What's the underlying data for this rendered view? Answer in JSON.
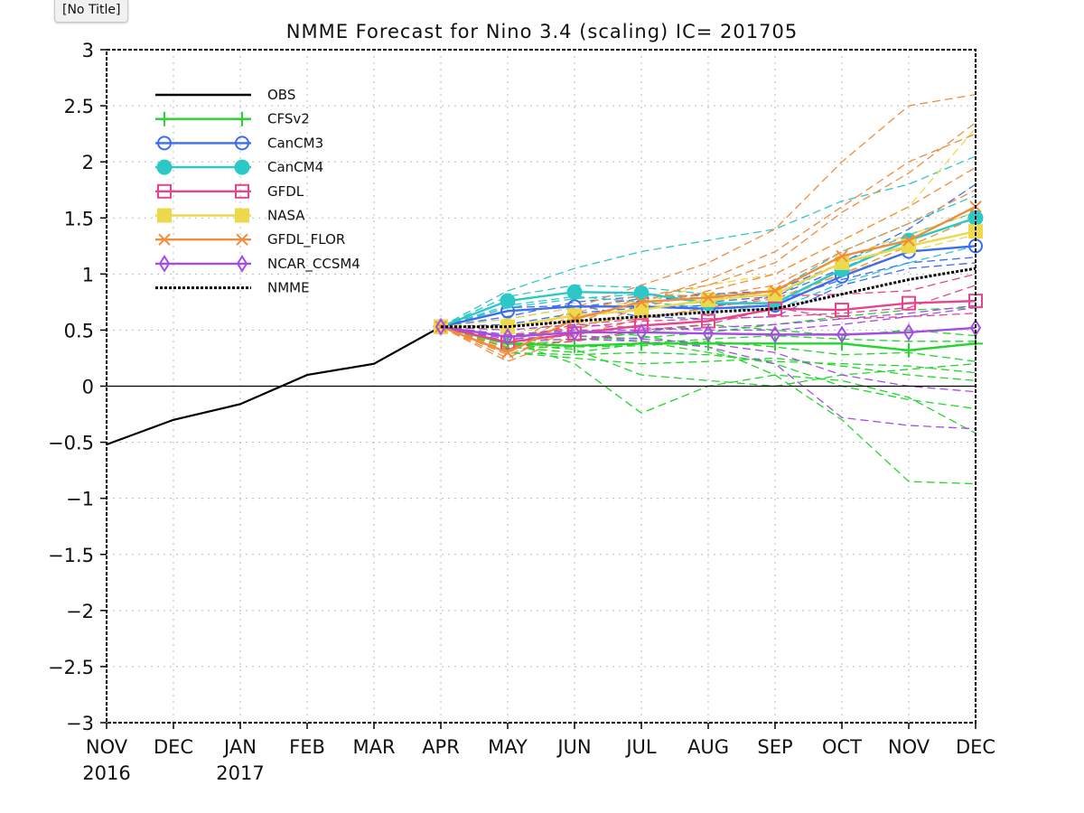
{
  "window": {
    "tab_title": "[No Title]"
  },
  "chart_data": {
    "type": "line",
    "title": "NMME Forecast for Nino 3.4 (scaling) IC= 201705",
    "xlabel": "",
    "ylabel": "",
    "x_ticks": [
      {
        "label": "NOV",
        "sub": "2016"
      },
      {
        "label": "DEC",
        "sub": ""
      },
      {
        "label": "JAN",
        "sub": "2017"
      },
      {
        "label": "FEB",
        "sub": ""
      },
      {
        "label": "MAR",
        "sub": ""
      },
      {
        "label": "APR",
        "sub": ""
      },
      {
        "label": "MAY",
        "sub": ""
      },
      {
        "label": "JUN",
        "sub": ""
      },
      {
        "label": "JUL",
        "sub": ""
      },
      {
        "label": "AUG",
        "sub": ""
      },
      {
        "label": "SEP",
        "sub": ""
      },
      {
        "label": "OCT",
        "sub": ""
      },
      {
        "label": "NOV",
        "sub": ""
      },
      {
        "label": "DEC",
        "sub": ""
      }
    ],
    "y_ticks": [
      "3",
      "2.5",
      "2",
      "1.5",
      "1",
      "0.5",
      "0",
      "−0.5",
      "−1",
      "−1.5",
      "−2",
      "−2.5",
      "−3"
    ],
    "ylim": [
      -3,
      3
    ],
    "grid": true,
    "legend_position": "top-left",
    "colors": {
      "OBS": "#000000",
      "CFSv2": "#22d62a",
      "CanCM3": "#3c6cf0",
      "CanCM4": "#2cc8c8",
      "GFDL": "#e8448c",
      "NASA": "#ecd94c",
      "GFDL_FLOR": "#f08c3c",
      "NCAR_CCSM4": "#a64ce6",
      "NMME": "#000000"
    },
    "series": [
      {
        "name": "OBS",
        "style": "solid",
        "marker": "none",
        "x": [
          0,
          1,
          2,
          3,
          4,
          5
        ],
        "values": [
          -0.52,
          -0.3,
          -0.16,
          0.1,
          0.2,
          0.53
        ]
      },
      {
        "name": "CFSv2",
        "style": "solid",
        "marker": "plus",
        "x": [
          5,
          6,
          7,
          8,
          9,
          10,
          11,
          12,
          13
        ],
        "values": [
          0.53,
          0.38,
          0.36,
          0.38,
          0.38,
          0.38,
          0.38,
          0.32,
          0.38
        ]
      },
      {
        "name": "CanCM3",
        "style": "solid",
        "marker": "circle",
        "x": [
          5,
          6,
          7,
          8,
          9,
          10,
          11,
          12,
          13
        ],
        "values": [
          0.53,
          0.67,
          0.71,
          0.71,
          0.69,
          0.72,
          0.98,
          1.2,
          1.25
        ]
      },
      {
        "name": "CanCM4",
        "style": "solid",
        "marker": "filled-circle",
        "x": [
          5,
          6,
          7,
          8,
          9,
          10,
          11,
          12,
          13
        ],
        "values": [
          0.53,
          0.76,
          0.84,
          0.83,
          0.74,
          0.74,
          1.04,
          1.3,
          1.5
        ]
      },
      {
        "name": "GFDL",
        "style": "solid",
        "marker": "square",
        "x": [
          5,
          6,
          7,
          8,
          9,
          10,
          11,
          12,
          13
        ],
        "values": [
          0.53,
          0.39,
          0.47,
          0.54,
          0.58,
          0.69,
          0.68,
          0.74,
          0.76
        ]
      },
      {
        "name": "NASA",
        "style": "solid",
        "marker": "filled-square",
        "x": [
          5,
          6,
          7,
          8,
          9,
          10,
          11,
          12,
          13
        ],
        "values": [
          0.53,
          0.53,
          0.63,
          0.68,
          0.77,
          0.82,
          1.1,
          1.25,
          1.38
        ]
      },
      {
        "name": "GFDL_FLOR",
        "style": "solid",
        "marker": "x",
        "x": [
          5,
          6,
          7,
          8,
          9,
          10,
          11,
          12,
          13
        ],
        "values": [
          0.53,
          0.3,
          0.6,
          0.75,
          0.79,
          0.85,
          1.16,
          1.3,
          1.6
        ]
      },
      {
        "name": "NCAR_CCSM4",
        "style": "solid",
        "marker": "diamond",
        "x": [
          5,
          6,
          7,
          8,
          9,
          10,
          11,
          12,
          13
        ],
        "values": [
          0.53,
          0.44,
          0.48,
          0.48,
          0.47,
          0.46,
          0.46,
          0.48,
          0.52
        ]
      },
      {
        "name": "NMME",
        "style": "dotted",
        "marker": "none",
        "x": [
          5,
          6,
          7,
          8,
          9,
          10,
          11,
          12,
          13
        ],
        "values": [
          0.53,
          0.53,
          0.58,
          0.62,
          0.66,
          0.69,
          0.82,
          0.95,
          1.05
        ]
      }
    ],
    "ensemble_members": [
      {
        "model": "CFSv2",
        "values": [
          0.53,
          0.35,
          0.3,
          0.38,
          0.42,
          0.45,
          0.42,
          0.4,
          0.4
        ]
      },
      {
        "model": "CFSv2",
        "values": [
          0.53,
          0.3,
          0.25,
          0.2,
          0.22,
          0.25,
          0.18,
          0.1,
          0.05
        ]
      },
      {
        "model": "CFSv2",
        "values": [
          0.53,
          0.45,
          0.5,
          0.45,
          0.35,
          0.1,
          -0.3,
          -0.85,
          -0.87
        ]
      },
      {
        "model": "CFSv2",
        "values": [
          0.53,
          0.4,
          0.2,
          -0.24,
          0.0,
          0.1,
          0.05,
          -0.1,
          -0.42
        ]
      },
      {
        "model": "CFSv2",
        "values": [
          0.53,
          0.42,
          0.45,
          0.4,
          0.3,
          0.2,
          0.0,
          -0.12,
          -0.2
        ]
      },
      {
        "model": "CFSv2",
        "values": [
          0.53,
          0.38,
          0.4,
          0.48,
          0.55,
          0.5,
          0.45,
          0.5,
          0.45
        ]
      },
      {
        "model": "CFSv2",
        "values": [
          0.53,
          0.3,
          0.28,
          0.3,
          0.28,
          0.22,
          0.2,
          0.18,
          0.12
        ]
      },
      {
        "model": "CFSv2",
        "values": [
          0.53,
          0.34,
          0.35,
          0.36,
          0.4,
          0.35,
          0.28,
          0.3,
          0.22
        ]
      },
      {
        "model": "CFSv2",
        "values": [
          0.53,
          0.37,
          0.33,
          0.1,
          0.05,
          0.0,
          0.1,
          0.15,
          0.2
        ]
      },
      {
        "model": "CFSv2",
        "values": [
          0.53,
          0.4,
          0.42,
          0.43,
          0.48,
          0.55,
          0.62,
          0.68,
          0.7
        ]
      },
      {
        "model": "CanCM3",
        "values": [
          0.53,
          0.6,
          0.7,
          0.78,
          0.82,
          0.85,
          1.1,
          1.4,
          1.8
        ]
      },
      {
        "model": "CanCM3",
        "values": [
          0.53,
          0.55,
          0.65,
          0.7,
          0.72,
          0.75,
          0.95,
          1.1,
          1.15
        ]
      },
      {
        "model": "CanCM3",
        "values": [
          0.53,
          0.7,
          0.72,
          0.62,
          0.6,
          0.62,
          0.9,
          1.05,
          1.1
        ]
      },
      {
        "model": "CanCM3",
        "values": [
          0.53,
          0.62,
          0.75,
          0.8,
          0.75,
          0.8,
          1.05,
          1.3,
          1.5
        ]
      },
      {
        "model": "CanCM4",
        "values": [
          0.53,
          0.85,
          1.05,
          1.2,
          1.3,
          1.4,
          1.65,
          1.8,
          2.05
        ]
      },
      {
        "model": "CanCM4",
        "values": [
          0.53,
          0.7,
          0.78,
          0.82,
          0.78,
          0.85,
          1.2,
          1.45,
          1.7
        ]
      },
      {
        "model": "CanCM4",
        "values": [
          0.53,
          0.72,
          0.8,
          0.75,
          0.7,
          0.68,
          0.92,
          1.1,
          1.25
        ]
      },
      {
        "model": "CanCM4",
        "values": [
          0.53,
          0.8,
          0.9,
          0.88,
          0.82,
          0.8,
          1.1,
          1.35,
          1.55
        ]
      },
      {
        "model": "GFDL",
        "values": [
          0.53,
          0.45,
          0.52,
          0.58,
          0.6,
          0.62,
          0.65,
          0.7,
          0.9
        ]
      },
      {
        "model": "GFDL",
        "values": [
          0.53,
          0.35,
          0.4,
          0.5,
          0.55,
          0.7,
          0.6,
          0.62,
          0.65
        ]
      },
      {
        "model": "GFDL",
        "values": [
          0.53,
          0.4,
          0.55,
          0.6,
          0.7,
          0.8,
          0.82,
          0.85,
          1.0
        ]
      },
      {
        "model": "NASA",
        "values": [
          0.53,
          0.6,
          0.7,
          0.75,
          0.9,
          1.0,
          1.3,
          1.6,
          2.3
        ]
      },
      {
        "model": "NASA",
        "values": [
          0.53,
          0.5,
          0.55,
          0.62,
          0.68,
          0.75,
          1.0,
          1.2,
          1.35
        ]
      },
      {
        "model": "NASA",
        "values": [
          0.53,
          0.45,
          0.6,
          0.7,
          0.75,
          0.85,
          1.15,
          1.35,
          1.55
        ]
      },
      {
        "model": "GFDL_FLOR",
        "values": [
          0.53,
          0.35,
          0.7,
          0.9,
          1.1,
          1.4,
          2.0,
          2.5,
          2.6
        ]
      },
      {
        "model": "GFDL_FLOR",
        "values": [
          0.53,
          0.25,
          0.55,
          0.8,
          0.9,
          1.1,
          1.55,
          1.9,
          2.35
        ]
      },
      {
        "model": "GFDL_FLOR",
        "values": [
          0.53,
          0.28,
          0.5,
          0.7,
          0.85,
          1.0,
          1.3,
          1.6,
          1.95
        ]
      },
      {
        "model": "GFDL_FLOR",
        "values": [
          0.53,
          0.32,
          0.65,
          0.82,
          0.8,
          0.9,
          1.2,
          1.45,
          1.75
        ]
      },
      {
        "model": "GFDL_FLOR",
        "values": [
          0.53,
          0.22,
          0.45,
          0.6,
          0.7,
          0.78,
          1.0,
          1.25,
          1.5
        ]
      },
      {
        "model": "GFDL_FLOR",
        "values": [
          0.53,
          0.3,
          0.6,
          0.75,
          0.95,
          1.2,
          1.6,
          2.0,
          2.25
        ]
      },
      {
        "model": "NCAR_CCSM4",
        "values": [
          0.53,
          0.4,
          0.42,
          0.4,
          0.35,
          0.2,
          -0.28,
          -0.35,
          -0.38
        ]
      },
      {
        "model": "NCAR_CCSM4",
        "values": [
          0.53,
          0.5,
          0.55,
          0.52,
          0.5,
          0.5,
          0.55,
          0.62,
          0.7
        ]
      },
      {
        "model": "NCAR_CCSM4",
        "values": [
          0.53,
          0.42,
          0.45,
          0.42,
          0.38,
          0.3,
          0.1,
          0.0,
          -0.05
        ]
      },
      {
        "model": "NCAR_CCSM4",
        "values": [
          0.53,
          0.46,
          0.5,
          0.5,
          0.52,
          0.55,
          0.6,
          0.65,
          0.72
        ]
      }
    ]
  }
}
